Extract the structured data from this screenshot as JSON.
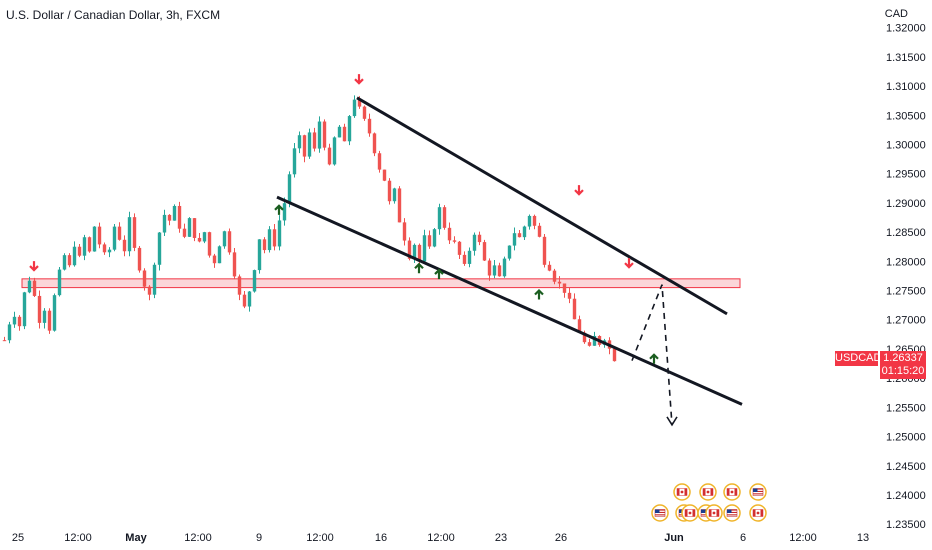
{
  "header": {
    "title": "U.S. Dollar / Canadian Dollar, 3h, FXCM",
    "currency": "CAD"
  },
  "badge": {
    "symbol": "USDCAD",
    "price": "1.26337",
    "countdown": "01:15:20"
  },
  "colors": {
    "up": "#26a69a",
    "down": "#ef5350",
    "arrow_down": "#f23645",
    "arrow_up": "#1b5e20",
    "zone_fill": "#f7b4b9",
    "zone_stroke": "#f23645"
  },
  "chart_data": {
    "type": "candlestick",
    "title": "U.S. Dollar / Canadian Dollar, 3h, FXCM",
    "ylim": [
      1.234,
      1.322
    ],
    "yticks": [
      "1.32000",
      "1.31500",
      "1.31000",
      "1.30500",
      "1.30000",
      "1.29500",
      "1.29000",
      "1.28500",
      "1.28000",
      "1.27500",
      "1.27000",
      "1.26500",
      "1.26000",
      "1.25500",
      "1.25000",
      "1.24500",
      "1.24000",
      "1.23500"
    ],
    "xticks": [
      {
        "label": "25",
        "bold": false
      },
      {
        "label": "12:00",
        "bold": false
      },
      {
        "label": "May",
        "bold": true
      },
      {
        "label": "12:00",
        "bold": false
      },
      {
        "label": "9",
        "bold": false
      },
      {
        "label": "12:00",
        "bold": false
      },
      {
        "label": "16",
        "bold": false
      },
      {
        "label": "12:00",
        "bold": false
      },
      {
        "label": "23",
        "bold": false
      },
      {
        "label": "26",
        "bold": false
      },
      {
        "label": "Jun",
        "bold": true
      },
      {
        "label": "6",
        "bold": false
      },
      {
        "label": "12:00",
        "bold": false
      },
      {
        "label": "13",
        "bold": false
      }
    ],
    "last_price": 1.26337,
    "path_points": [
      1.2665,
      1.2695,
      1.271,
      1.269,
      1.2745,
      1.277,
      1.274,
      1.27,
      1.272,
      1.2685,
      1.274,
      1.278,
      1.281,
      1.279,
      1.283,
      1.2805,
      1.284,
      1.2815,
      1.286,
      1.283,
      1.281,
      1.282,
      1.286,
      1.284,
      1.282,
      1.287,
      1.282,
      1.279,
      1.276,
      1.274,
      1.28,
      1.285,
      1.288,
      1.287,
      1.289,
      1.286,
      1.284,
      1.287,
      1.2845,
      1.283,
      1.285,
      1.281,
      1.28,
      1.283,
      1.285,
      1.282,
      1.278,
      1.274,
      1.272,
      1.275,
      1.279,
      1.284,
      1.282,
      1.285,
      1.283,
      1.287,
      1.29,
      1.295,
      1.299,
      1.301,
      1.298,
      1.302,
      1.299,
      1.304,
      1.3,
      1.296,
      1.301,
      1.303,
      1.3,
      1.305,
      1.308,
      1.306,
      1.304,
      1.302,
      1.299,
      1.296,
      1.294,
      1.29,
      1.292,
      1.287,
      1.284,
      1.281,
      1.283,
      1.28,
      1.284,
      1.282,
      1.286,
      1.289,
      1.286,
      1.284,
      1.283,
      1.281,
      1.279,
      1.282,
      1.285,
      1.283,
      1.28,
      1.278,
      1.279,
      1.277,
      1.28,
      1.283,
      1.285,
      1.284,
      1.286,
      1.288,
      1.286,
      1.284,
      1.28,
      1.279,
      1.277,
      1.276,
      1.275,
      1.273,
      1.27,
      1.268,
      1.266,
      1.265,
      1.267,
      1.266,
      1.267,
      1.265,
      1.2634
    ],
    "support_zone": {
      "low": 1.2755,
      "high": 1.277
    },
    "trendlines": [
      {
        "name": "upper-channel",
        "from": {
          "bar": 71,
          "price": 1.308
        },
        "to": {
          "bar": 145,
          "price": 1.271
        }
      },
      {
        "name": "lower-channel",
        "from": {
          "bar": 55,
          "price": 1.291
        },
        "to": {
          "bar": 148,
          "price": 1.2555
        }
      }
    ],
    "projection": [
      {
        "bar": 126,
        "price": 1.263
      },
      {
        "bar": 132,
        "price": 1.276
      },
      {
        "bar": 134,
        "price": 1.252
      }
    ],
    "arrows_down": [
      {
        "bar": 6,
        "price": 1.2785
      },
      {
        "bar": 71,
        "price": 1.3105
      },
      {
        "bar": 115,
        "price": 1.2915
      },
      {
        "bar": 125,
        "price": 1.279
      }
    ],
    "arrows_up": [
      {
        "bar": 55,
        "price": 1.2895
      },
      {
        "bar": 83,
        "price": 1.2795
      },
      {
        "bar": 87,
        "price": 1.2785
      },
      {
        "bar": 107,
        "price": 1.275
      },
      {
        "bar": 130,
        "price": 1.264
      }
    ],
    "events": [
      {
        "icon": "canada-flag-icon",
        "row": 0,
        "x": 682
      },
      {
        "icon": "canada-flag-icon",
        "row": 0,
        "x": 708
      },
      {
        "icon": "canada-flag-icon",
        "row": 0,
        "x": 732
      },
      {
        "icon": "us-flag-icon",
        "row": 0,
        "x": 758
      },
      {
        "icon": "us-flag-icon",
        "row": 1,
        "x": 660
      },
      {
        "icon": "us-flag-icon",
        "row": 1,
        "x": 684
      },
      {
        "icon": "canada-flag-icon",
        "row": 1,
        "x": 690
      },
      {
        "icon": "us-flag-icon",
        "row": 1,
        "x": 706
      },
      {
        "icon": "canada-flag-icon",
        "row": 1,
        "x": 714
      },
      {
        "icon": "us-flag-icon",
        "row": 1,
        "x": 732
      },
      {
        "icon": "canada-flag-icon",
        "row": 1,
        "x": 758
      }
    ]
  }
}
